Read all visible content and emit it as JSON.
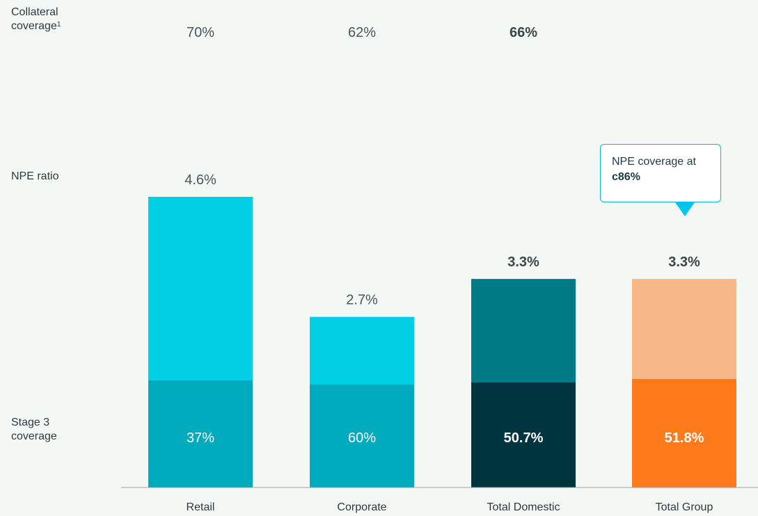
{
  "row_labels": {
    "collateral": "Collateral coverage",
    "collateral_sup": "1",
    "npe": "NPE ratio",
    "stage3": "Stage 3 coverage"
  },
  "callout": {
    "prefix": "NPE coverage at ",
    "value": "c86%"
  },
  "chart_data": {
    "type": "bar",
    "categories": [
      "Retail",
      "Corporate",
      "Total Domestic",
      "Total Group"
    ],
    "series": [
      {
        "name": "NPE ratio",
        "values": [
          4.6,
          2.7,
          3.3,
          3.3
        ],
        "labels": [
          "4.6%",
          "2.7%",
          "3.3%",
          "3.3%"
        ]
      },
      {
        "name": "Stage 3 coverage",
        "values": [
          37,
          60,
          50.7,
          51.8
        ],
        "labels": [
          "37%",
          "60%",
          "50.7%",
          "51.8%"
        ]
      },
      {
        "name": "Collateral coverage",
        "values": [
          70,
          62,
          66,
          null
        ],
        "labels": [
          "70%",
          "62%",
          "66%",
          ""
        ]
      }
    ],
    "colors": {
      "retail_top": "#00cfe6",
      "retail_bottom": "#00abbd",
      "corporate_top": "#00cfe6",
      "corporate_bottom": "#00abbd",
      "domestic_top": "#007a85",
      "domestic_bottom": "#003540",
      "group_top": "#f7b787",
      "group_bottom": "#ff7a1a"
    },
    "emphasis": [
      false,
      false,
      true,
      true
    ]
  }
}
